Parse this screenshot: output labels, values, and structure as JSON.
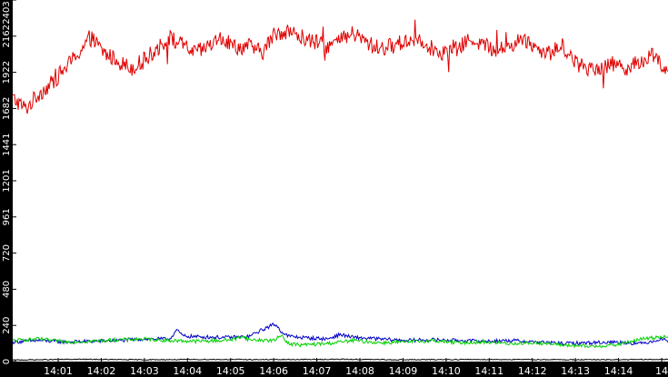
{
  "chart_data": {
    "type": "line",
    "x_tick_labels": [
      "14:01",
      "14:02",
      "14:03",
      "14:04",
      "14:05",
      "14:06",
      "14:07",
      "14:08",
      "14:09",
      "14:10",
      "14:11",
      "14:12",
      "14:13",
      "14:14",
      "14"
    ],
    "y_tick_labels": [
      "0",
      "240",
      "480",
      "720",
      "961",
      "1201",
      "1441",
      "1682",
      "1922",
      "2162",
      "2403"
    ],
    "ylim": [
      0,
      2403
    ],
    "xlim": [
      0,
      1
    ],
    "grid": false,
    "series": [
      {
        "color": "#e00000",
        "x": [
          0,
          0.02,
          0.04,
          0.06,
          0.08,
          0.1,
          0.12,
          0.14,
          0.16,
          0.18,
          0.2,
          0.22,
          0.24,
          0.26,
          0.28,
          0.3,
          0.32,
          0.34,
          0.36,
          0.38,
          0.4,
          0.42,
          0.44,
          0.46,
          0.48,
          0.5,
          0.52,
          0.54,
          0.56,
          0.58,
          0.6,
          0.62,
          0.64,
          0.66,
          0.68,
          0.7,
          0.72,
          0.74,
          0.76,
          0.78,
          0.8,
          0.82,
          0.84,
          0.86,
          0.88,
          0.9,
          0.92,
          0.94,
          0.96,
          0.98,
          1.0
        ],
        "values": [
          1750,
          1680,
          1780,
          1850,
          1950,
          2050,
          2150,
          2050,
          2000,
          1950,
          2000,
          2080,
          2150,
          2100,
          2050,
          2100,
          2150,
          2080,
          2100,
          2050,
          2180,
          2200,
          2150,
          2120,
          2100,
          2130,
          2180,
          2120,
          2080,
          2100,
          2130,
          2150,
          2080,
          2050,
          2080,
          2150,
          2100,
          2070,
          2100,
          2150,
          2080,
          2050,
          2100,
          1980,
          1950,
          1960,
          1980,
          1950,
          2000,
          2050,
          1900
        ]
      },
      {
        "color": "#0000c8",
        "x": [
          0,
          0.04,
          0.08,
          0.12,
          0.16,
          0.2,
          0.24,
          0.25,
          0.26,
          0.28,
          0.32,
          0.36,
          0.38,
          0.4,
          0.41,
          0.42,
          0.44,
          0.48,
          0.5,
          0.52,
          0.56,
          0.6,
          0.64,
          0.68,
          0.72,
          0.76,
          0.8,
          0.84,
          0.88,
          0.92,
          0.96,
          0.99,
          1.0
        ],
        "values": [
          130,
          140,
          130,
          135,
          140,
          150,
          150,
          210,
          170,
          165,
          160,
          165,
          210,
          250,
          200,
          170,
          160,
          150,
          180,
          160,
          150,
          140,
          145,
          140,
          135,
          140,
          130,
          120,
          125,
          130,
          120,
          150,
          140
        ]
      },
      {
        "color": "#00d000",
        "x": [
          0,
          0.04,
          0.08,
          0.12,
          0.16,
          0.2,
          0.24,
          0.28,
          0.32,
          0.34,
          0.35,
          0.36,
          0.4,
          0.41,
          0.42,
          0.44,
          0.48,
          0.52,
          0.56,
          0.6,
          0.64,
          0.68,
          0.72,
          0.76,
          0.8,
          0.84,
          0.88,
          0.92,
          0.96,
          1.0
        ],
        "values": [
          140,
          150,
          130,
          135,
          145,
          150,
          140,
          135,
          140,
          150,
          170,
          145,
          140,
          180,
          120,
          110,
          120,
          140,
          125,
          130,
          140,
          125,
          130,
          120,
          125,
          110,
          100,
          110,
          150,
          170
        ]
      },
      {
        "color": "#000000",
        "x": [
          0,
          0.1,
          0.2,
          0.3,
          0.4,
          0.5,
          0.6,
          0.7,
          0.8,
          0.9,
          1.0
        ],
        "values": [
          10,
          15,
          12,
          14,
          13,
          15,
          12,
          14,
          13,
          12,
          14
        ]
      }
    ]
  }
}
